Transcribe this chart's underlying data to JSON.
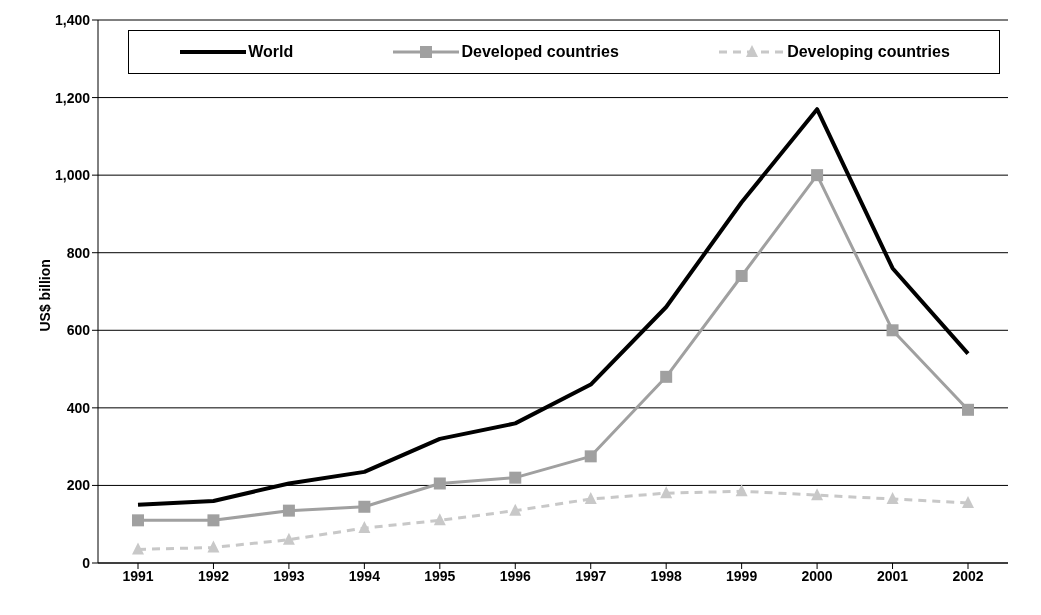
{
  "chart_data": {
    "type": "line",
    "ylabel": "US$ billion",
    "categories": [
      "1991",
      "1992",
      "1993",
      "1994",
      "1995",
      "1996",
      "1997",
      "1998",
      "1999",
      "2000",
      "2001",
      "2002"
    ],
    "series": [
      {
        "name": "World",
        "color": "#000000",
        "marker": "none",
        "line_style": "solid",
        "values": [
          150,
          160,
          205,
          235,
          320,
          360,
          460,
          660,
          930,
          1170,
          760,
          540
        ]
      },
      {
        "name": "Developed countries",
        "color": "#a0a0a0",
        "marker": "square",
        "line_style": "solid",
        "values": [
          110,
          110,
          135,
          145,
          205,
          220,
          275,
          480,
          740,
          1000,
          600,
          395
        ]
      },
      {
        "name": "Developing countries",
        "color": "#c8c8c8",
        "marker": "triangle",
        "line_style": "dashed",
        "values": [
          35,
          40,
          60,
          90,
          110,
          135,
          165,
          180,
          185,
          175,
          165,
          155
        ]
      }
    ],
    "ylim": [
      0,
      1400
    ],
    "yticks": [
      0,
      200,
      400,
      600,
      800,
      {
        "value": 1000,
        "label": "1,000"
      },
      {
        "value": 1200,
        "label": "1,200"
      },
      {
        "value": 1400,
        "label": "1,400"
      }
    ],
    "grid": "y",
    "legend": "top"
  }
}
